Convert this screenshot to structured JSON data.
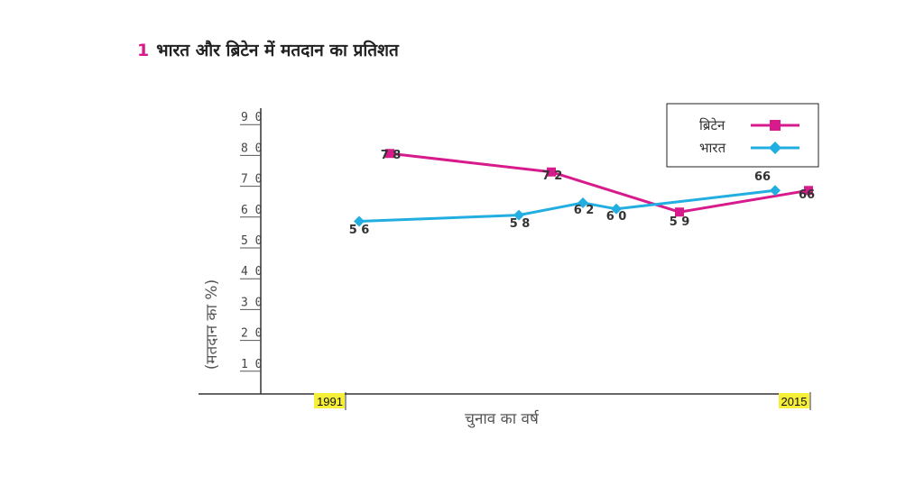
{
  "figure": {
    "number": "1",
    "title": "भारत और ब्रिटेन में मतदान का प्रतिशत"
  },
  "chart_data": {
    "type": "line",
    "ylabel": "(मतदान का %)",
    "xlabel": "चुनाव का वर्ष",
    "x_tick_labels": [
      "1991",
      "2015"
    ],
    "y_ticks": [
      10,
      20,
      30,
      40,
      50,
      60,
      70,
      80,
      90
    ],
    "ylim": [
      0,
      90
    ],
    "grid": false,
    "legend_placement": "top-right",
    "series": [
      {
        "name": "ब्रिटेन",
        "color": "#d81b8c",
        "marker": "square",
        "values": [
          78,
          72,
          59,
          66
        ]
      },
      {
        "name": "भारत",
        "color": "#22aee0",
        "marker": "diamond",
        "values": [
          56,
          58,
          62,
          60,
          66
        ]
      }
    ]
  }
}
